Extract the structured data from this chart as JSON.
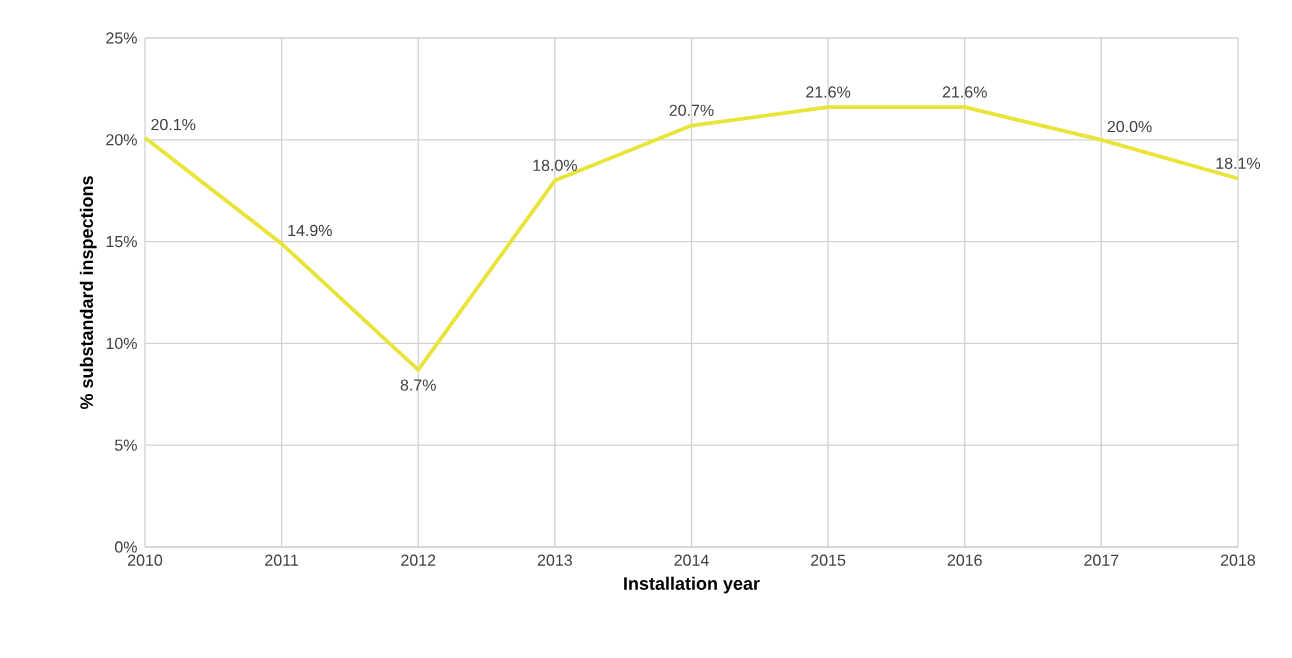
{
  "chart_data": {
    "type": "line",
    "xlabel": "Installation year",
    "ylabel": "% substandard inspections",
    "x": [
      2010,
      2011,
      2012,
      2013,
      2014,
      2015,
      2016,
      2017,
      2018
    ],
    "series": [
      {
        "color": "#e8e43a",
        "values": [
          20.1,
          14.9,
          8.7,
          18.0,
          20.7,
          21.6,
          21.6,
          20.0,
          18.1
        ],
        "value_labels": [
          "20.1%",
          "14.9%",
          "8.7%",
          "18.0%",
          "20.7%",
          "21.6%",
          "21.6%",
          "20.0%",
          "18.1%"
        ]
      }
    ],
    "xlim": [
      2010,
      2018
    ],
    "xticks": [
      2010,
      2011,
      2012,
      2013,
      2014,
      2015,
      2016,
      2017,
      2018
    ],
    "ylim": [
      0,
      25
    ],
    "yticks": [
      {
        "value": 0,
        "label": "0%"
      },
      {
        "value": 5,
        "label": "5%"
      },
      {
        "value": 10,
        "label": "10%"
      },
      {
        "value": 15,
        "label": "15%"
      },
      {
        "value": 20,
        "label": "20%"
      },
      {
        "value": 25,
        "label": "25%"
      }
    ],
    "grid": true,
    "marker": "none",
    "line_style": "solid"
  }
}
